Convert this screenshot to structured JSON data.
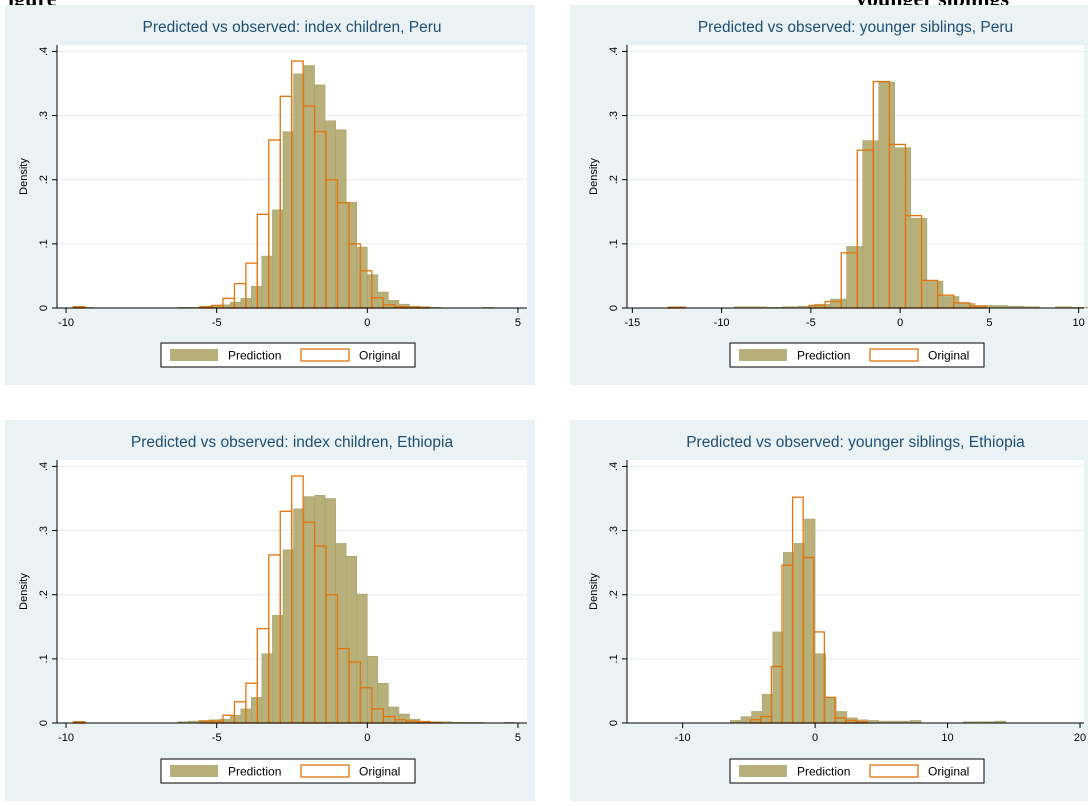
{
  "page_heading": {
    "left_fragment": "igure",
    "right_fragment": "younger siblings"
  },
  "legend_labels": {
    "prediction": "Prediction",
    "original": "Original"
  },
  "colors": {
    "prediction": "#b7b07a",
    "original": "#e2740a",
    "panel_bg": "#eaf2f3",
    "plot_bg": "#ffffff",
    "grid": "#e6eced"
  },
  "chart_data": [
    {
      "type": "bar",
      "title": "Predicted vs observed: index children, Peru",
      "xlabel": "",
      "ylabel": "Density",
      "xlim": [
        -10.3,
        5.3
      ],
      "ylim": [
        0,
        0.41
      ],
      "xticks": [
        -10,
        -5,
        0,
        5
      ],
      "xtick_labels": [
        "-10",
        "-5",
        "0",
        "5"
      ],
      "yticks": [
        0,
        0.1,
        0.2,
        0.3,
        0.4
      ],
      "ytick_labels": [
        "0",
        ".1",
        ".2",
        ".3",
        ".4"
      ],
      "legend": "bottom",
      "series": [
        {
          "name": "Prediction",
          "bin_width": 0.35,
          "bins": [
            [
              -9.8,
              0.001
            ],
            [
              -9.45,
              0.001
            ],
            [
              -6.3,
              0.001
            ],
            [
              -5.95,
              0.001
            ],
            [
              -5.6,
              0.002
            ],
            [
              -5.25,
              0.003
            ],
            [
              -4.9,
              0.005
            ],
            [
              -4.55,
              0.009
            ],
            [
              -4.2,
              0.015
            ],
            [
              -3.85,
              0.034
            ],
            [
              -3.5,
              0.081
            ],
            [
              -3.15,
              0.153
            ],
            [
              -2.8,
              0.275
            ],
            [
              -2.45,
              0.365
            ],
            [
              -2.1,
              0.378
            ],
            [
              -1.75,
              0.348
            ],
            [
              -1.4,
              0.292
            ],
            [
              -1.05,
              0.278
            ],
            [
              -0.7,
              0.165
            ],
            [
              -0.35,
              0.095
            ],
            [
              0.0,
              0.052
            ],
            [
              0.35,
              0.025
            ],
            [
              0.7,
              0.012
            ],
            [
              1.05,
              0.006
            ],
            [
              1.4,
              0.003
            ],
            [
              1.75,
              0.002
            ],
            [
              2.1,
              0.001
            ],
            [
              3.85,
              0.001
            ]
          ]
        },
        {
          "name": "Original",
          "bin_width": 0.38,
          "bins": [
            [
              -9.75,
              0.002
            ],
            [
              -5.55,
              0.002
            ],
            [
              -5.17,
              0.004
            ],
            [
              -4.79,
              0.015
            ],
            [
              -4.41,
              0.038
            ],
            [
              -4.03,
              0.07
            ],
            [
              -3.65,
              0.146
            ],
            [
              -3.27,
              0.262
            ],
            [
              -2.89,
              0.33
            ],
            [
              -2.51,
              0.385
            ],
            [
              -2.13,
              0.315
            ],
            [
              -1.75,
              0.275
            ],
            [
              -1.37,
              0.2
            ],
            [
              -0.99,
              0.164
            ],
            [
              -0.61,
              0.1
            ],
            [
              -0.23,
              0.058
            ],
            [
              0.15,
              0.016
            ],
            [
              0.53,
              0.005
            ],
            [
              0.91,
              0.002
            ],
            [
              1.29,
              0.001
            ],
            [
              1.67,
              0.001
            ]
          ]
        }
      ]
    },
    {
      "type": "bar",
      "title": "Predicted vs observed: younger siblings, Peru",
      "xlabel": "",
      "ylabel": "Density",
      "xlim": [
        -15.3,
        10.3
      ],
      "ylim": [
        0,
        0.41
      ],
      "xticks": [
        -15,
        -10,
        -5,
        0,
        5,
        10
      ],
      "xtick_labels": [
        "-15",
        "-10",
        "-5",
        "0",
        "5",
        "10"
      ],
      "yticks": [
        0,
        0.1,
        0.2,
        0.3,
        0.4
      ],
      "ytick_labels": [
        "0",
        ".1",
        ".2",
        ".3",
        ".4"
      ],
      "legend": "bottom",
      "series": [
        {
          "name": "Prediction",
          "bin_width": 0.9,
          "bins": [
            [
              -12.9,
              0.002
            ],
            [
              -9.3,
              0.002
            ],
            [
              -8.4,
              0.002
            ],
            [
              -7.5,
              0.001
            ],
            [
              -6.6,
              0.002
            ],
            [
              -5.7,
              0.003
            ],
            [
              -4.8,
              0.006
            ],
            [
              -3.9,
              0.014
            ],
            [
              -3.0,
              0.096
            ],
            [
              -2.1,
              0.261
            ],
            [
              -1.2,
              0.352
            ],
            [
              -0.3,
              0.25
            ],
            [
              0.6,
              0.14
            ],
            [
              1.5,
              0.042
            ],
            [
              2.4,
              0.018
            ],
            [
              3.3,
              0.007
            ],
            [
              4.2,
              0.004
            ],
            [
              5.1,
              0.004
            ],
            [
              6.0,
              0.003
            ],
            [
              6.9,
              0.002
            ],
            [
              8.7,
              0.002
            ],
            [
              9.6,
              0.001
            ]
          ]
        },
        {
          "name": "Original",
          "bin_width": 0.9,
          "bins": [
            [
              -13.0,
              0.001
            ],
            [
              -5.1,
              0.004
            ],
            [
              -4.2,
              0.01
            ],
            [
              -3.3,
              0.086
            ],
            [
              -2.4,
              0.246
            ],
            [
              -1.5,
              0.353
            ],
            [
              -0.6,
              0.255
            ],
            [
              0.3,
              0.144
            ],
            [
              1.2,
              0.043
            ],
            [
              2.1,
              0.02
            ],
            [
              3.0,
              0.008
            ],
            [
              3.9,
              0.003
            ]
          ]
        }
      ]
    },
    {
      "type": "bar",
      "title": "Predicted vs observed: index children, Ethiopia",
      "xlabel": "",
      "ylabel": "Density",
      "xlim": [
        -10.3,
        5.3
      ],
      "ylim": [
        0,
        0.41
      ],
      "xticks": [
        -10,
        -5,
        0,
        5
      ],
      "xtick_labels": [
        "-10",
        "-5",
        "0",
        "5"
      ],
      "yticks": [
        0,
        0.1,
        0.2,
        0.3,
        0.4
      ],
      "ytick_labels": [
        "0",
        ".1",
        ".2",
        ".3",
        ".4"
      ],
      "legend": "bottom",
      "series": [
        {
          "name": "Prediction",
          "bin_width": 0.35,
          "bins": [
            [
              -6.3,
              0.002
            ],
            [
              -5.95,
              0.003
            ],
            [
              -5.6,
              0.004
            ],
            [
              -5.25,
              0.005
            ],
            [
              -4.9,
              0.006
            ],
            [
              -4.55,
              0.012
            ],
            [
              -4.2,
              0.022
            ],
            [
              -3.85,
              0.04
            ],
            [
              -3.5,
              0.108
            ],
            [
              -3.15,
              0.168
            ],
            [
              -2.8,
              0.27
            ],
            [
              -2.45,
              0.334
            ],
            [
              -2.1,
              0.353
            ],
            [
              -1.75,
              0.355
            ],
            [
              -1.4,
              0.35
            ],
            [
              -1.05,
              0.28
            ],
            [
              -0.7,
              0.26
            ],
            [
              -0.35,
              0.201
            ],
            [
              0.0,
              0.104
            ],
            [
              0.35,
              0.062
            ],
            [
              0.7,
              0.025
            ],
            [
              1.05,
              0.014
            ],
            [
              1.4,
              0.006
            ],
            [
              1.75,
              0.003
            ],
            [
              2.1,
              0.002
            ],
            [
              2.45,
              0.002
            ],
            [
              2.8,
              0.001
            ],
            [
              3.15,
              0.001
            ],
            [
              3.5,
              0.001
            ],
            [
              4.55,
              0.001
            ]
          ]
        },
        {
          "name": "Original",
          "bin_width": 0.38,
          "bins": [
            [
              -9.75,
              0.002
            ],
            [
              -5.55,
              0.003
            ],
            [
              -5.17,
              0.003
            ],
            [
              -4.79,
              0.012
            ],
            [
              -4.41,
              0.033
            ],
            [
              -4.03,
              0.062
            ],
            [
              -3.65,
              0.147
            ],
            [
              -3.27,
              0.262
            ],
            [
              -2.89,
              0.33
            ],
            [
              -2.51,
              0.385
            ],
            [
              -2.13,
              0.313
            ],
            [
              -1.75,
              0.276
            ],
            [
              -1.37,
              0.2
            ],
            [
              -0.99,
              0.116
            ],
            [
              -0.61,
              0.095
            ],
            [
              -0.23,
              0.055
            ],
            [
              0.15,
              0.022
            ],
            [
              0.53,
              0.01
            ],
            [
              0.91,
              0.005
            ],
            [
              1.29,
              0.003
            ],
            [
              1.67,
              0.002
            ],
            [
              2.05,
              0.001
            ]
          ]
        }
      ]
    },
    {
      "type": "bar",
      "title": "Predicted vs observed: younger siblings, Ethiopia",
      "xlabel": "",
      "ylabel": "Density",
      "xlim": [
        -14.2,
        20.3
      ],
      "ylim": [
        0,
        0.41
      ],
      "xticks": [
        -10,
        0,
        10,
        20
      ],
      "xtick_labels": [
        "-10",
        "0",
        "10",
        "20"
      ],
      "yticks": [
        0,
        0.1,
        0.2,
        0.3,
        0.4
      ],
      "ytick_labels": [
        "0",
        ".1",
        ".2",
        ".3",
        ".4"
      ],
      "legend": "bottom",
      "series": [
        {
          "name": "Prediction",
          "bin_width": 0.8,
          "bins": [
            [
              -6.4,
              0.004
            ],
            [
              -5.6,
              0.01
            ],
            [
              -4.8,
              0.018
            ],
            [
              -4.0,
              0.045
            ],
            [
              -3.2,
              0.142
            ],
            [
              -2.4,
              0.266
            ],
            [
              -1.6,
              0.28
            ],
            [
              -0.8,
              0.318
            ],
            [
              0.0,
              0.108
            ],
            [
              0.8,
              0.04
            ],
            [
              1.6,
              0.018
            ],
            [
              2.4,
              0.008
            ],
            [
              3.2,
              0.005
            ],
            [
              4.0,
              0.004
            ],
            [
              4.8,
              0.003
            ],
            [
              5.6,
              0.003
            ],
            [
              6.4,
              0.003
            ],
            [
              7.2,
              0.004
            ],
            [
              11.2,
              0.002
            ],
            [
              12.0,
              0.002
            ],
            [
              12.8,
              0.002
            ],
            [
              13.6,
              0.003
            ]
          ]
        },
        {
          "name": "Original",
          "bin_width": 0.8,
          "bins": [
            [
              -4.9,
              0.005
            ],
            [
              -4.1,
              0.01
            ],
            [
              -3.3,
              0.088
            ],
            [
              -2.5,
              0.246
            ],
            [
              -1.7,
              0.352
            ],
            [
              -0.9,
              0.258
            ],
            [
              -0.1,
              0.142
            ],
            [
              0.7,
              0.04
            ],
            [
              1.5,
              0.008
            ],
            [
              2.3,
              0.004
            ],
            [
              3.1,
              0.002
            ]
          ]
        }
      ]
    }
  ]
}
